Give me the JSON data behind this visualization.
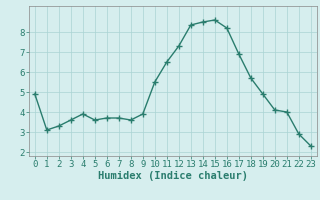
{
  "x": [
    0,
    1,
    2,
    3,
    4,
    5,
    6,
    7,
    8,
    9,
    10,
    11,
    12,
    13,
    14,
    15,
    16,
    17,
    18,
    19,
    20,
    21,
    22,
    23
  ],
  "y": [
    4.9,
    3.1,
    3.3,
    3.6,
    3.9,
    3.6,
    3.7,
    3.7,
    3.6,
    3.9,
    5.5,
    6.5,
    7.3,
    8.35,
    8.5,
    8.6,
    8.2,
    6.9,
    5.7,
    4.9,
    4.1,
    4.0,
    2.9,
    2.3
  ],
  "line_color": "#2a7d6e",
  "marker": "+",
  "marker_color": "#2a7d6e",
  "bg_color": "#d6eeee",
  "grid_color": "#aad4d4",
  "xlabel": "Humidex (Indice chaleur)",
  "xlim": [
    -0.5,
    23.5
  ],
  "ylim": [
    1.8,
    9.3
  ],
  "yticks": [
    2,
    3,
    4,
    5,
    6,
    7,
    8
  ],
  "xticks": [
    0,
    1,
    2,
    3,
    4,
    5,
    6,
    7,
    8,
    9,
    10,
    11,
    12,
    13,
    14,
    15,
    16,
    17,
    18,
    19,
    20,
    21,
    22,
    23
  ],
  "tick_color": "#2a7d6e",
  "label_color": "#2a7d6e",
  "spine_color": "#888888",
  "tick_fontsize": 6.5,
  "xlabel_fontsize": 7.5,
  "marker_size": 4,
  "linewidth": 1.0,
  "markeredgewidth": 1.0
}
